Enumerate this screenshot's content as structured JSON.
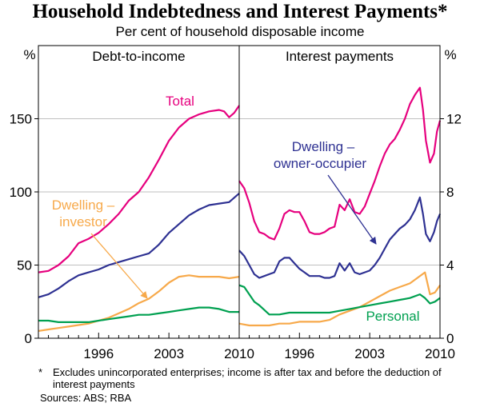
{
  "title": "Household Indebtedness and Interest Payments*",
  "subtitle": "Per cent of household disposable income",
  "footnote": {
    "marker": "*",
    "text": "Excludes unincorporated enterprises; income is after tax and before the deduction of interest payments"
  },
  "sources": "Sources: ABS; RBA",
  "chart_data": [
    {
      "type": "line",
      "panel": "left",
      "title": "Debt-to-income",
      "ylabel": "%",
      "ylim": [
        0,
        200
      ],
      "yticks": [
        "0",
        "50",
        "100",
        "150"
      ],
      "xlim": [
        1990,
        2010
      ],
      "xticks": [
        "1996",
        "2003",
        "2010"
      ],
      "series": [
        {
          "name": "Total",
          "label": "Total",
          "color": "#e6007e",
          "x": [
            1990,
            1991,
            1992,
            1993,
            1994,
            1995,
            1996,
            1997,
            1998,
            1999,
            2000,
            2001,
            2002,
            2003,
            2004,
            2005,
            2006,
            2007,
            2008,
            2008.5,
            2009,
            2009.5,
            2010
          ],
          "y": [
            45,
            46,
            50,
            56,
            65,
            68,
            72,
            78,
            85,
            94,
            100,
            110,
            122,
            135,
            144,
            150,
            153,
            155,
            156,
            155,
            151,
            154,
            159
          ]
        },
        {
          "name": "Dwelling – owner-occupier",
          "color": "#2e3192",
          "x": [
            1990,
            1991,
            1992,
            1993,
            1994,
            1995,
            1996,
            1997,
            1998,
            1999,
            2000,
            2001,
            2002,
            2003,
            2004,
            2005,
            2006,
            2007,
            2008,
            2009,
            2010
          ],
          "y": [
            28,
            30,
            34,
            39,
            43,
            45,
            47,
            50,
            52,
            54,
            56,
            58,
            64,
            72,
            78,
            84,
            88,
            91,
            92,
            93,
            99
          ]
        },
        {
          "name": "Dwelling – investor",
          "label": [
            "Dwelling –",
            "investor"
          ],
          "color": "#f7a94a",
          "x": [
            1990,
            1991,
            1992,
            1993,
            1994,
            1995,
            1996,
            1997,
            1998,
            1999,
            2000,
            2001,
            2002,
            2003,
            2004,
            2005,
            2006,
            2007,
            2008,
            2009,
            2010
          ],
          "y": [
            5,
            6,
            7,
            8,
            9,
            10,
            12,
            14,
            17,
            20,
            24,
            27,
            32,
            38,
            42,
            43,
            42,
            42,
            42,
            41,
            42
          ]
        },
        {
          "name": "Personal",
          "color": "#00a050",
          "x": [
            1990,
            1991,
            1992,
            1993,
            1994,
            1995,
            1996,
            1997,
            1998,
            1999,
            2000,
            2001,
            2002,
            2003,
            2004,
            2005,
            2006,
            2007,
            2008,
            2009,
            2010
          ],
          "y": [
            12,
            12,
            11,
            11,
            11,
            11,
            12,
            13,
            14,
            15,
            16,
            16,
            17,
            18,
            19,
            20,
            21,
            21,
            20,
            18,
            18
          ]
        }
      ]
    },
    {
      "type": "line",
      "panel": "right",
      "title": "Interest payments",
      "ylabel": "%",
      "ylim": [
        0,
        16
      ],
      "yticks": [
        "0",
        "4",
        "8",
        "12"
      ],
      "xlim": [
        1990,
        2010
      ],
      "xticks": [
        "1996",
        "2003",
        "2010"
      ],
      "series": [
        {
          "name": "Total",
          "color": "#e6007e",
          "x": [
            1990,
            1990.5,
            1991,
            1991.5,
            1992,
            1992.5,
            1993,
            1993.5,
            1994,
            1994.5,
            1995,
            1995.5,
            1996,
            1996.5,
            1997,
            1997.5,
            1998,
            1998.5,
            1999,
            1999.5,
            2000,
            2000.5,
            2001,
            2001.5,
            2002,
            2002.5,
            2003,
            2003.5,
            2004,
            2004.5,
            2005,
            2005.5,
            2006,
            2006.5,
            2007,
            2007.5,
            2008,
            2008.3,
            2008.6,
            2009,
            2009.4,
            2009.7,
            2010
          ],
          "y": [
            8.6,
            8.2,
            7.4,
            6.4,
            5.8,
            5.7,
            5.5,
            5.4,
            6.0,
            6.8,
            7.0,
            6.9,
            6.9,
            6.4,
            5.8,
            5.7,
            5.7,
            5.8,
            6.0,
            6.1,
            7.3,
            7.0,
            7.6,
            6.9,
            6.8,
            7.2,
            7.9,
            8.6,
            9.4,
            10.1,
            10.6,
            10.9,
            11.4,
            12.0,
            12.8,
            13.3,
            13.7,
            12.5,
            10.8,
            9.6,
            10.1,
            11.3,
            11.9
          ]
        },
        {
          "name": "Dwelling – owner-occupier",
          "label": [
            "Dwelling –",
            "owner-occupier"
          ],
          "color": "#2e3192",
          "x": [
            1990,
            1990.5,
            1991,
            1991.5,
            1992,
            1992.5,
            1993,
            1993.5,
            1994,
            1994.5,
            1995,
            1995.5,
            1996,
            1996.5,
            1997,
            1997.5,
            1998,
            1998.5,
            1999,
            1999.5,
            2000,
            2000.5,
            2001,
            2001.5,
            2002,
            2002.5,
            2003,
            2003.5,
            2004,
            2004.5,
            2005,
            2005.5,
            2006,
            2006.5,
            2007,
            2007.5,
            2008,
            2008.3,
            2008.6,
            2009,
            2009.4,
            2009.7,
            2010
          ],
          "y": [
            4.8,
            4.5,
            4.0,
            3.5,
            3.3,
            3.4,
            3.5,
            3.6,
            4.2,
            4.4,
            4.4,
            4.1,
            3.8,
            3.6,
            3.4,
            3.4,
            3.4,
            3.3,
            3.3,
            3.4,
            4.1,
            3.7,
            4.1,
            3.6,
            3.5,
            3.6,
            3.7,
            4.0,
            4.4,
            4.9,
            5.4,
            5.7,
            6.0,
            6.2,
            6.5,
            7.0,
            7.7,
            6.8,
            5.7,
            5.3,
            5.8,
            6.4,
            6.8
          ]
        },
        {
          "name": "Dwelling – investor",
          "color": "#f7a94a",
          "x": [
            1990,
            1991,
            1992,
            1993,
            1994,
            1995,
            1996,
            1997,
            1998,
            1999,
            2000,
            2001,
            2002,
            2003,
            2004,
            2005,
            2006,
            2007,
            2008,
            2008.5,
            2009,
            2009.5,
            2010
          ],
          "y": [
            0.8,
            0.7,
            0.7,
            0.7,
            0.8,
            0.8,
            0.9,
            0.9,
            0.9,
            1.0,
            1.3,
            1.5,
            1.7,
            2.0,
            2.3,
            2.6,
            2.8,
            3.0,
            3.4,
            3.6,
            2.4,
            2.5,
            2.9
          ]
        },
        {
          "name": "Personal",
          "label": "Personal",
          "color": "#00a050",
          "x": [
            1990,
            1990.5,
            1991,
            1991.5,
            1992,
            1993,
            1994,
            1995,
            1996,
            1997,
            1998,
            1999,
            2000,
            2001,
            2002,
            2003,
            2004,
            2005,
            2006,
            2007,
            2008,
            2008.5,
            2009,
            2009.5,
            2010
          ],
          "y": [
            2.9,
            2.8,
            2.4,
            2.0,
            1.8,
            1.3,
            1.3,
            1.4,
            1.4,
            1.4,
            1.4,
            1.4,
            1.5,
            1.6,
            1.7,
            1.8,
            1.9,
            2.0,
            2.1,
            2.2,
            2.4,
            2.2,
            1.9,
            2.0,
            2.2
          ]
        }
      ]
    }
  ]
}
